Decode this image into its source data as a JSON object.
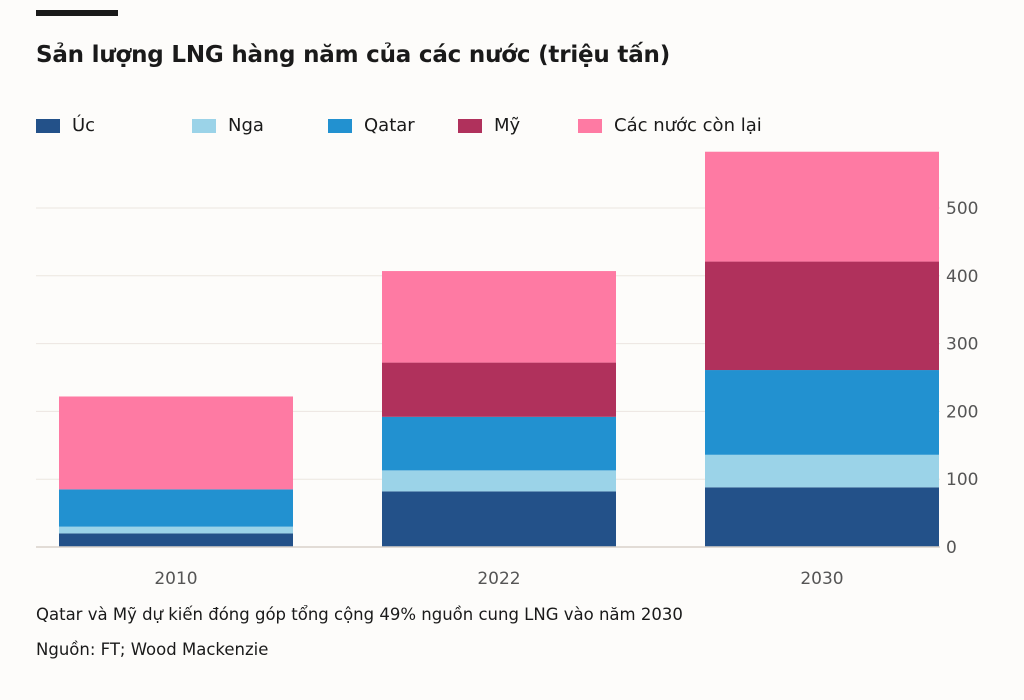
{
  "title": "Sản lượng LNG hàng năm của các nước (triệu tấn)",
  "note": "Qatar và Mỹ dự kiến đóng góp tổng cộng 49% nguồn cung LNG vào năm 2030",
  "source": "Nguồn: FT; Wood Mackenzie",
  "chart_data": {
    "type": "bar",
    "stacked": true,
    "title": "Sản lượng LNG hàng năm của các nước (triệu tấn)",
    "categories": [
      "2010",
      "2022",
      "2030"
    ],
    "series": [
      {
        "name": "Úc",
        "color": "#235189",
        "values": [
          20,
          82,
          88
        ]
      },
      {
        "name": "Nga",
        "color": "#9bd3e8",
        "values": [
          10,
          31,
          48
        ]
      },
      {
        "name": "Qatar",
        "color": "#2291d0",
        "values": [
          55,
          79,
          125
        ]
      },
      {
        "name": "Mỹ",
        "color": "#b0315c",
        "values": [
          0,
          80,
          160
        ]
      },
      {
        "name": "Các nước còn lại",
        "color": "#fe7aa3",
        "values": [
          137,
          135,
          162
        ]
      }
    ],
    "yaxis": {
      "position": "right",
      "ylim": [
        0,
        580
      ],
      "ticks": [
        0,
        100,
        200,
        300,
        400,
        500
      ]
    },
    "grid": true,
    "legend_position": "top"
  }
}
